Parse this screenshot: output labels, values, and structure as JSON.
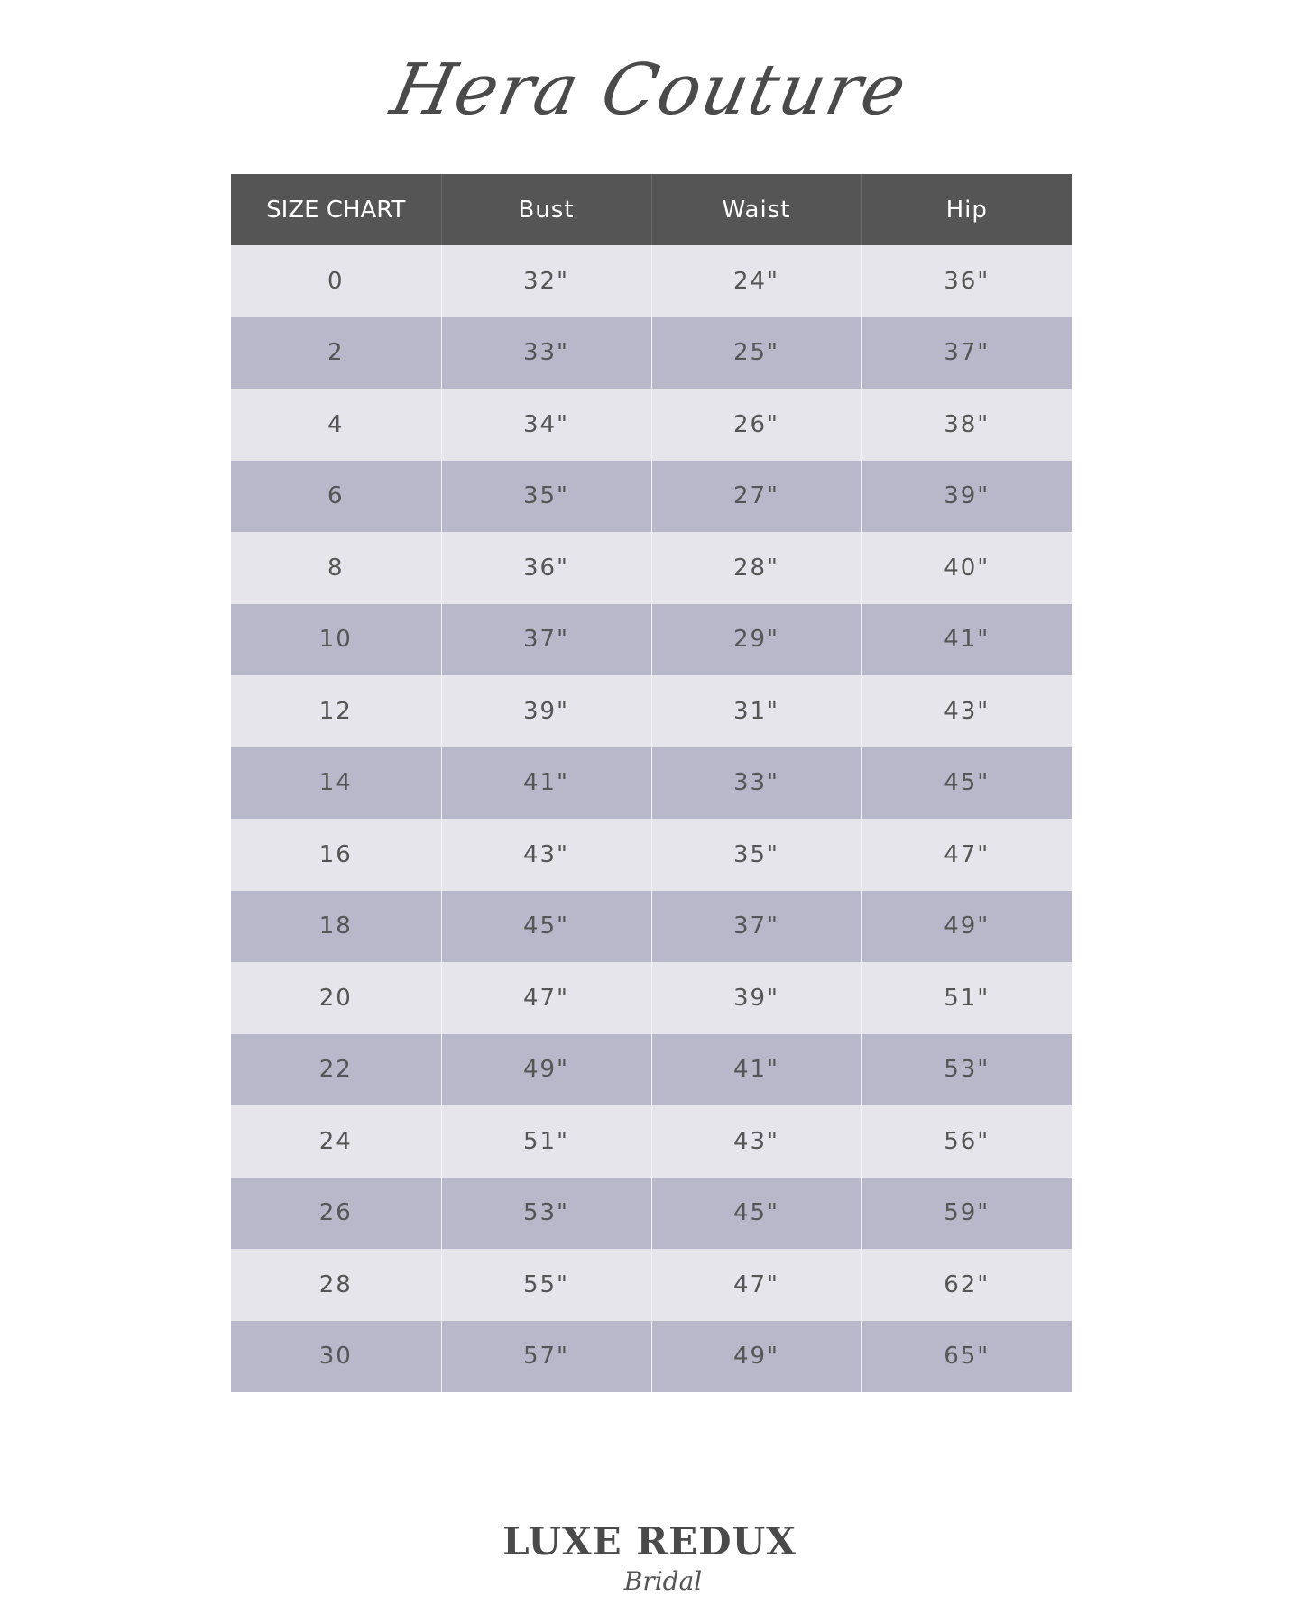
{
  "brand": "Hera Couture",
  "table": {
    "headers": [
      "SIZE CHART",
      "Bust",
      "Waist",
      "Hip"
    ],
    "rows": [
      [
        "0",
        "32\"",
        "24\"",
        "36\""
      ],
      [
        "2",
        "33\"",
        "25\"",
        "37\""
      ],
      [
        "4",
        "34\"",
        "26\"",
        "38\""
      ],
      [
        "6",
        "35\"",
        "27\"",
        "39\""
      ],
      [
        "8",
        "36\"",
        "28\"",
        "40\""
      ],
      [
        "10",
        "37\"",
        "29\"",
        "41\""
      ],
      [
        "12",
        "39\"",
        "31\"",
        "43\""
      ],
      [
        "14",
        "41\"",
        "33\"",
        "45\""
      ],
      [
        "16",
        "43\"",
        "35\"",
        "47\""
      ],
      [
        "18",
        "45\"",
        "37\"",
        "49\""
      ],
      [
        "20",
        "47\"",
        "39\"",
        "51\""
      ],
      [
        "22",
        "49\"",
        "41\"",
        "53\""
      ],
      [
        "24",
        "51\"",
        "43\"",
        "56\""
      ],
      [
        "26",
        "53\"",
        "45\"",
        "59\""
      ],
      [
        "28",
        "55\"",
        "47\"",
        "62\""
      ],
      [
        "30",
        "57\"",
        "49\"",
        "65\""
      ]
    ]
  },
  "logo": {
    "main": "LUXE REDUX",
    "sub": "Bridal"
  },
  "colors": {
    "header": "#555555",
    "row_light": "#e6e5ec",
    "row_dark": "#b9b8cb",
    "text": "#555555"
  }
}
